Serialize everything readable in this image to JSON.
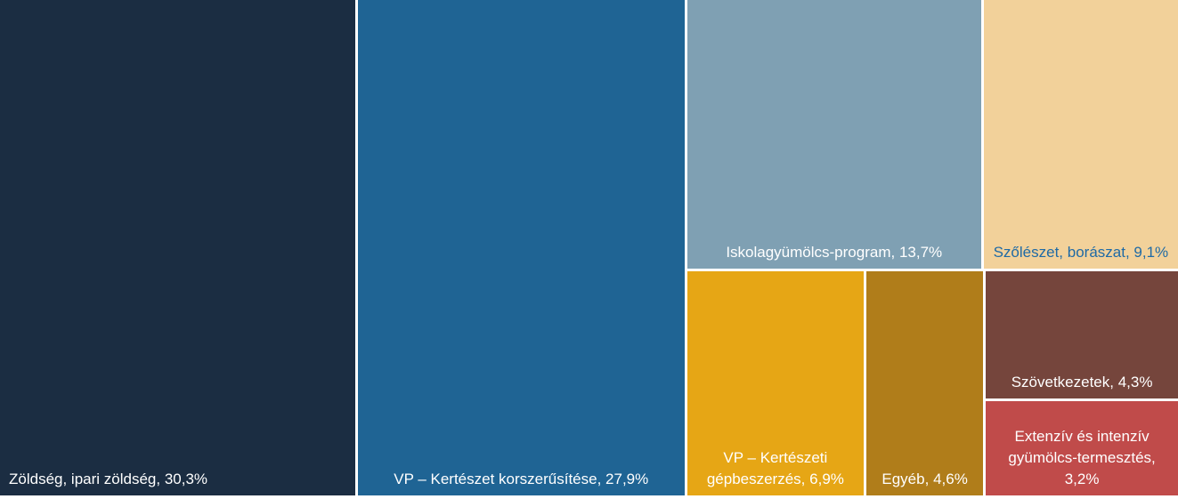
{
  "chart_data": {
    "type": "treemap",
    "categories": [
      "Zöldség, ipari zöldség,",
      "VP – Kertészet korszerűsítése,",
      "Iskolagyümölcs-program,",
      "Szőlészet, borászat,",
      "VP – Kertészeti gépbeszerzés,",
      "Egyéb,",
      "Szövetkezetek,",
      "Extenzív és intenzív gyümölcs-termesztés,"
    ],
    "values": [
      30.3,
      27.9,
      13.7,
      9.1,
      6.9,
      4.6,
      4.3,
      3.2
    ],
    "value_labels": [
      "30,3%",
      "27,9%",
      "13,7%",
      "9,1%",
      "6,9%",
      "4,6%",
      "4,3%",
      "3,2%"
    ],
    "colors": [
      "#1b2d42",
      "#1f6494",
      "#7fa0b3",
      "#f2d19a",
      "#e6a615",
      "#b07d1a",
      "#75453c",
      "#c04b4a"
    ],
    "label_colors": [
      "#ffffff",
      "#ffffff",
      "#ffffff",
      "#1f6aa5",
      "#ffffff",
      "#ffffff",
      "#ffffff",
      "#ffffff"
    ]
  }
}
